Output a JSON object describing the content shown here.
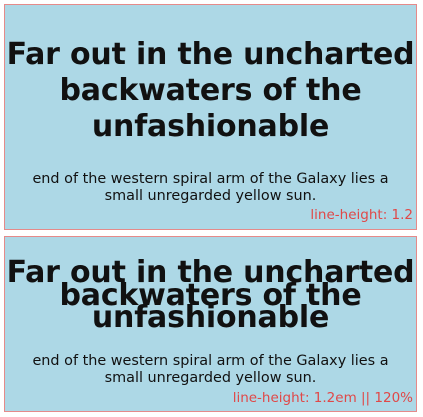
{
  "panels": [
    {
      "heading_line1": "Far out in the uncharted",
      "heading_line2": "backwaters of the",
      "heading_line3": "unfashionable",
      "body_line1": "end of the western spiral arm of the Galaxy lies a",
      "body_line2": "small unregarded yellow sun.",
      "note": "line-height: 1.2"
    },
    {
      "heading_line1": "Far out in the uncharted",
      "heading_line2": "backwaters of the",
      "heading_line3": "unfashionable",
      "body_line1": "end of the western spiral arm of the Galaxy lies a",
      "body_line2": "small unregarded yellow sun.",
      "note": "line-height: 1.2em || 120%"
    }
  ],
  "colors": {
    "panel_background": "#add8e6",
    "panel_border": "#e58a8a",
    "note_text": "#e04848",
    "main_text": "#111111"
  }
}
